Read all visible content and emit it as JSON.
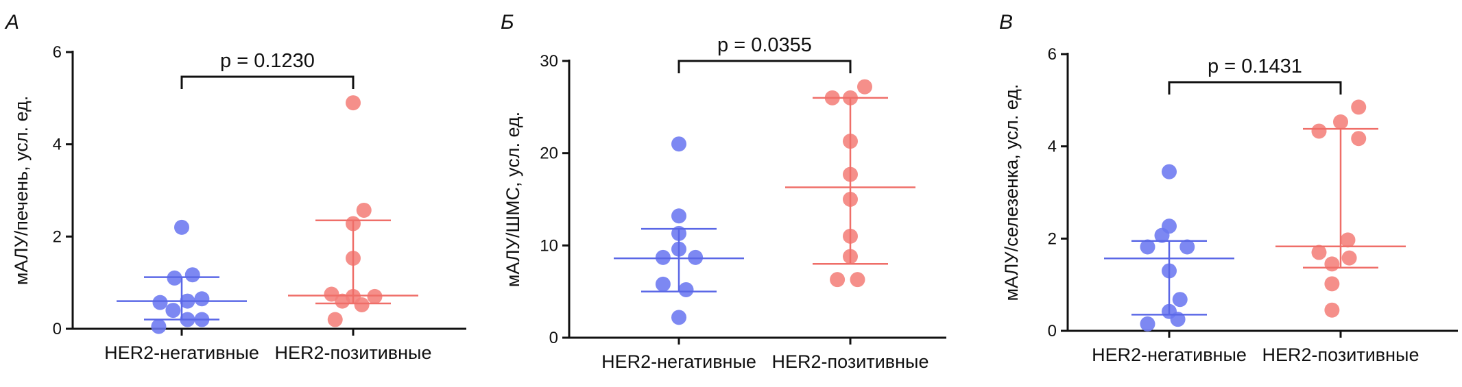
{
  "colors": {
    "negative_point": "#6b78f0",
    "negative_line": "#5a67e6",
    "positive_point": "#f4807a",
    "positive_line": "#ef6e68",
    "axis": "#111111"
  },
  "chart_data": [
    {
      "type": "scatter",
      "panel_label": "А",
      "ylabel": "мАЛУ/печень, усл. ед.",
      "ylim": [
        0,
        6
      ],
      "yticks": [
        0,
        2,
        4,
        6
      ],
      "categories": [
        "HER2-негативные",
        "HER2-позитивные"
      ],
      "p_value": "p = 0.1230",
      "series": [
        {
          "points": [
            {
              "x": -0.32,
              "y": 0.05
            },
            {
              "x": -0.3,
              "y": 0.57
            },
            {
              "x": -0.12,
              "y": 0.4
            },
            {
              "x": -0.1,
              "y": 1.1
            },
            {
              "x": 0.0,
              "y": 2.2
            },
            {
              "x": 0.08,
              "y": 0.6
            },
            {
              "x": 0.08,
              "y": 0.2
            },
            {
              "x": 0.15,
              "y": 1.17
            },
            {
              "x": 0.28,
              "y": 0.65
            },
            {
              "x": 0.28,
              "y": 0.2
            }
          ],
          "median": 0.6,
          "q1": 0.2,
          "q3": 1.12
        },
        {
          "points": [
            {
              "x": -0.3,
              "y": 0.75
            },
            {
              "x": -0.25,
              "y": 0.2
            },
            {
              "x": -0.15,
              "y": 0.6
            },
            {
              "x": 0.0,
              "y": 4.9
            },
            {
              "x": 0.0,
              "y": 2.28
            },
            {
              "x": 0.0,
              "y": 1.53
            },
            {
              "x": 0.0,
              "y": 0.7
            },
            {
              "x": 0.12,
              "y": 0.52
            },
            {
              "x": 0.15,
              "y": 2.57
            },
            {
              "x": 0.3,
              "y": 0.7
            }
          ],
          "median": 0.72,
          "q1": 0.55,
          "q3": 2.35
        }
      ]
    },
    {
      "type": "scatter",
      "panel_label": "Б",
      "ylabel": "мАЛУ/ШМС, усл. ед.",
      "ylim": [
        0,
        30
      ],
      "yticks": [
        0,
        10,
        20,
        30
      ],
      "categories": [
        "HER2-негативные",
        "HER2-позитивные"
      ],
      "p_value": "p = 0.0355",
      "series": [
        {
          "points": [
            {
              "x": -0.22,
              "y": 8.7
            },
            {
              "x": -0.22,
              "y": 5.8
            },
            {
              "x": 0.0,
              "y": 21.0
            },
            {
              "x": 0.0,
              "y": 13.2
            },
            {
              "x": 0.0,
              "y": 11.3
            },
            {
              "x": 0.0,
              "y": 9.6
            },
            {
              "x": 0.0,
              "y": 2.2
            },
            {
              "x": 0.1,
              "y": 5.2
            },
            {
              "x": 0.23,
              "y": 8.7
            }
          ],
          "median": 8.6,
          "q1": 5.0,
          "q3": 11.8
        },
        {
          "points": [
            {
              "x": -0.25,
              "y": 26.0
            },
            {
              "x": -0.18,
              "y": 6.3
            },
            {
              "x": 0.0,
              "y": 26.0
            },
            {
              "x": 0.0,
              "y": 21.3
            },
            {
              "x": 0.0,
              "y": 17.7
            },
            {
              "x": 0.0,
              "y": 15.0
            },
            {
              "x": 0.0,
              "y": 11.0
            },
            {
              "x": 0.0,
              "y": 8.8
            },
            {
              "x": 0.1,
              "y": 6.3
            },
            {
              "x": 0.2,
              "y": 27.2
            }
          ],
          "median": 16.3,
          "q1": 8.0,
          "q3": 26.0
        }
      ]
    },
    {
      "type": "scatter",
      "panel_label": "В",
      "ylabel": "мАЛУ/селезенка, усл. ед.",
      "ylim": [
        0,
        6
      ],
      "yticks": [
        0,
        2,
        4,
        6
      ],
      "categories": [
        "HER2-негативные",
        "HER2-позитивные"
      ],
      "p_value": "p = 0.1431",
      "series": [
        {
          "points": [
            {
              "x": -0.3,
              "y": 1.82
            },
            {
              "x": -0.3,
              "y": 0.15
            },
            {
              "x": -0.1,
              "y": 2.07
            },
            {
              "x": 0.0,
              "y": 3.45
            },
            {
              "x": 0.0,
              "y": 2.27
            },
            {
              "x": 0.0,
              "y": 1.3
            },
            {
              "x": 0.0,
              "y": 0.42
            },
            {
              "x": 0.12,
              "y": 0.25
            },
            {
              "x": 0.15,
              "y": 0.68
            },
            {
              "x": 0.25,
              "y": 1.82
            }
          ],
          "median": 1.57,
          "q1": 0.35,
          "q3": 1.95
        },
        {
          "points": [
            {
              "x": -0.3,
              "y": 4.33
            },
            {
              "x": -0.3,
              "y": 1.7
            },
            {
              "x": -0.12,
              "y": 1.45
            },
            {
              "x": -0.12,
              "y": 1.02
            },
            {
              "x": -0.12,
              "y": 0.45
            },
            {
              "x": 0.0,
              "y": 4.53
            },
            {
              "x": 0.1,
              "y": 1.97
            },
            {
              "x": 0.12,
              "y": 1.58
            },
            {
              "x": 0.25,
              "y": 4.85
            },
            {
              "x": 0.25,
              "y": 4.17
            }
          ],
          "median": 1.83,
          "q1": 1.37,
          "q3": 4.38
        }
      ]
    }
  ]
}
